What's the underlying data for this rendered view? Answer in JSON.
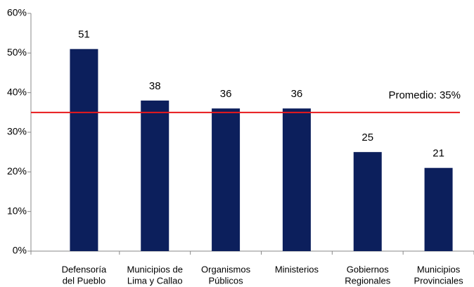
{
  "chart_data": {
    "type": "bar",
    "categories": [
      [
        "Defensoría",
        "del Pueblo"
      ],
      [
        "Municipios de",
        "Lima y Callao"
      ],
      [
        "Organismos",
        "Públicos"
      ],
      [
        "Ministerios"
      ],
      [
        "Gobiernos",
        "Regionales"
      ],
      [
        "Municipios",
        "Provinciales"
      ]
    ],
    "values": [
      51,
      38,
      36,
      36,
      25,
      21
    ],
    "color": "#0c1f5c",
    "ylim": [
      0,
      60
    ],
    "yticks": [
      {
        "value": 0,
        "label": "0%"
      },
      {
        "value": 10,
        "label": "10%"
      },
      {
        "value": 20,
        "label": "20%"
      },
      {
        "value": 30,
        "label": "30%"
      },
      {
        "value": 40,
        "label": "40%"
      },
      {
        "value": 50,
        "label": "50%"
      },
      {
        "value": 60,
        "label": "60%"
      }
    ],
    "reference_line": {
      "value": 35,
      "label": "Promedio: 35%",
      "color": "#e8191c"
    }
  }
}
